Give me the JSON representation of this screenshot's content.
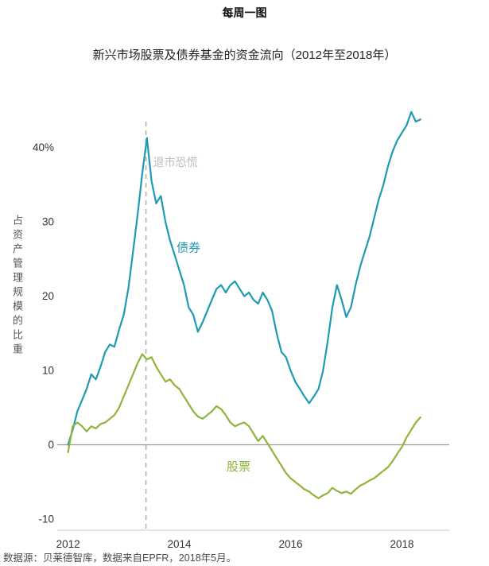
{
  "page": {
    "title": "每周一图",
    "subtitle": "新兴市场股票及债券基金的资金流向（2012年至2018年）",
    "source_note": "数据源：贝莱德智库，数据来自EPFR，2018年5月。"
  },
  "colors": {
    "bond_line": "#1d9bb2",
    "equity_line": "#8fb43c",
    "dashed_line": "#b3b3b3",
    "annotation_text": "#bdbdbd",
    "zero_line": "#999999",
    "bottom_axis": "#c8c8c8",
    "axis_text": "#333333"
  },
  "chart_data": {
    "type": "line",
    "title": "新兴市场股票及债券基金的资金流向（2012年至2018年）",
    "xlabel": "",
    "ylabel": "占资产管理规模的比重",
    "xlim": [
      2011.92,
      2018.85
    ],
    "ylim": [
      -11.5,
      46.5
    ],
    "grid": false,
    "legend": "inline-labels",
    "zero_line": true,
    "yticks": [
      {
        "value": 40,
        "label": "40%"
      },
      {
        "value": 30,
        "label": "30"
      },
      {
        "value": 20,
        "label": "20"
      },
      {
        "value": 10,
        "label": "10"
      },
      {
        "value": 0,
        "label": "0"
      },
      {
        "value": -10,
        "label": "-10"
      }
    ],
    "xticks": [
      {
        "value": 2012,
        "label": "2012"
      },
      {
        "value": 2014,
        "label": "2014"
      },
      {
        "value": 2016,
        "label": "2016"
      },
      {
        "value": 2018,
        "label": "2018"
      }
    ],
    "annotation": {
      "label": "退市恐慌",
      "x": 2013.4,
      "label_y": 37.5,
      "line_top": 43.5
    },
    "x": [
      2012.0,
      2012.083,
      2012.167,
      2012.25,
      2012.333,
      2012.417,
      2012.5,
      2012.583,
      2012.667,
      2012.75,
      2012.833,
      2012.917,
      2013.0,
      2013.083,
      2013.167,
      2013.25,
      2013.333,
      2013.417,
      2013.5,
      2013.583,
      2013.667,
      2013.75,
      2013.833,
      2013.917,
      2014.0,
      2014.083,
      2014.167,
      2014.25,
      2014.333,
      2014.417,
      2014.5,
      2014.583,
      2014.667,
      2014.75,
      2014.833,
      2014.917,
      2015.0,
      2015.083,
      2015.167,
      2015.25,
      2015.333,
      2015.417,
      2015.5,
      2015.583,
      2015.667,
      2015.75,
      2015.833,
      2015.917,
      2016.0,
      2016.083,
      2016.167,
      2016.25,
      2016.333,
      2016.417,
      2016.5,
      2016.583,
      2016.667,
      2016.75,
      2016.833,
      2016.917,
      2017.0,
      2017.083,
      2017.167,
      2017.25,
      2017.333,
      2017.417,
      2017.5,
      2017.583,
      2017.667,
      2017.75,
      2017.833,
      2017.917,
      2018.0,
      2018.083,
      2018.167,
      2018.25,
      2018.333
    ],
    "series": [
      {
        "id": "bonds",
        "name": "债券",
        "color": "#1d9bb2",
        "label_pos": {
          "x": 2013.95,
          "y": 26
        },
        "values": [
          0,
          2,
          4.5,
          6,
          7.5,
          9.5,
          8.8,
          10.5,
          12.5,
          13.5,
          13.2,
          15.5,
          17.5,
          21,
          26,
          31,
          36.5,
          41.3,
          35.5,
          32.5,
          33.5,
          30,
          27.5,
          25.5,
          23.5,
          21.5,
          18.5,
          17.5,
          15.2,
          16.5,
          18,
          19.5,
          21,
          21.5,
          20.5,
          21.5,
          22,
          21,
          20,
          20.5,
          19.5,
          19,
          20.5,
          19.5,
          18,
          15,
          12.5,
          11.8,
          10,
          8.5,
          7.5,
          6.5,
          5.6,
          6.5,
          7.5,
          10,
          14,
          18.5,
          21.5,
          19.5,
          17.2,
          18.5,
          21.5,
          24,
          26,
          28,
          30.5,
          33,
          35,
          37.5,
          39.5,
          41,
          42,
          43,
          44.8,
          43.5,
          43.8
        ]
      },
      {
        "id": "equities",
        "name": "股票",
        "color": "#8fb43c",
        "label_pos": {
          "x": 2014.85,
          "y": -3.5
        },
        "values": [
          -1,
          2.5,
          3,
          2.5,
          1.8,
          2.5,
          2.2,
          2.8,
          3,
          3.5,
          4,
          5,
          6.5,
          8,
          9.5,
          11,
          12.2,
          11.5,
          11.8,
          10.5,
          9.5,
          8.5,
          8.8,
          8,
          7.5,
          6.5,
          5.5,
          4.5,
          3.8,
          3.5,
          4,
          4.5,
          5.2,
          4.8,
          4,
          3,
          2.5,
          2.8,
          3,
          2.5,
          1.5,
          0.5,
          1.2,
          0.2,
          -0.8,
          -1.8,
          -2.8,
          -3.8,
          -4.5,
          -5,
          -5.5,
          -6,
          -6.3,
          -6.8,
          -7.2,
          -6.8,
          -6.5,
          -5.8,
          -6.2,
          -6.5,
          -6.3,
          -6.6,
          -6,
          -5.5,
          -5.2,
          -4.8,
          -4.5,
          -4,
          -3.5,
          -3,
          -2.2,
          -1.2,
          -0.3,
          1,
          2,
          3,
          3.7
        ]
      }
    ]
  }
}
